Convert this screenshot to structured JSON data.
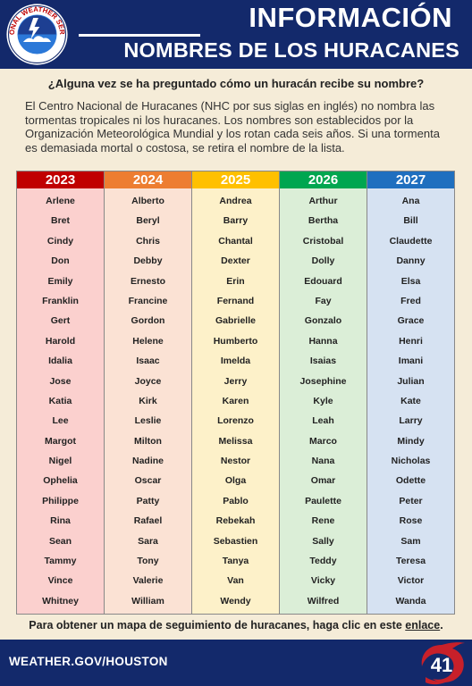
{
  "header": {
    "logo_text": "NATIONAL WEATHER SERVICE",
    "title": "INFORMACIÓN",
    "subtitle": "NOMBRES DE LOS HURACANES"
  },
  "question": "¿Alguna vez se ha preguntado cómo un huracán recibe su nombre?",
  "intro": "El Centro Nacional de Huracanes (NHC por sus siglas en inglés) no nombra las tormentas tropicales ni los huracanes. Los nombres son establecidos por la Organización Meteorológica Mundial y los rotan cada seis años. Si una tormenta es demasiada mortal o costosa, se retira el nombre de la lista.",
  "table": {
    "columns": [
      {
        "year": "2023",
        "head_color": "#c00000",
        "body_color": "#fbd0ce",
        "names": [
          "Arlene",
          "Bret",
          "Cindy",
          "Don",
          "Emily",
          "Franklin",
          "Gert",
          "Harold",
          "Idalia",
          "Jose",
          "Katia",
          "Lee",
          "Margot",
          "Nigel",
          "Ophelia",
          "Philippe",
          "Rina",
          "Sean",
          "Tammy",
          "Vince",
          "Whitney"
        ]
      },
      {
        "year": "2024",
        "head_color": "#ed7d31",
        "body_color": "#fbe2d4",
        "names": [
          "Alberto",
          "Beryl",
          "Chris",
          "Debby",
          "Ernesto",
          "Francine",
          "Gordon",
          "Helene",
          "Isaac",
          "Joyce",
          "Kirk",
          "Leslie",
          "Milton",
          "Nadine",
          "Oscar",
          "Patty",
          "Rafael",
          "Sara",
          "Tony",
          "Valerie",
          "William"
        ]
      },
      {
        "year": "2025",
        "head_color": "#ffc000",
        "body_color": "#fdf1c9",
        "names": [
          "Andrea",
          "Barry",
          "Chantal",
          "Dexter",
          "Erin",
          "Fernand",
          "Gabrielle",
          "Humberto",
          "Imelda",
          "Jerry",
          "Karen",
          "Lorenzo",
          "Melissa",
          "Nestor",
          "Olga",
          "Pablo",
          "Rebekah",
          "Sebastien",
          "Tanya",
          "Van",
          "Wendy"
        ]
      },
      {
        "year": "2026",
        "head_color": "#00a650",
        "body_color": "#dbeed7",
        "names": [
          "Arthur",
          "Bertha",
          "Cristobal",
          "Dolly",
          "Edouard",
          "Fay",
          "Gonzalo",
          "Hanna",
          "Isaias",
          "Josephine",
          "Kyle",
          "Leah",
          "Marco",
          "Nana",
          "Omar",
          "Paulette",
          "Rene",
          "Sally",
          "Teddy",
          "Vicky",
          "Wilfred"
        ]
      },
      {
        "year": "2027",
        "head_color": "#1f6fbf",
        "body_color": "#d6e2f2",
        "names": [
          "Ana",
          "Bill",
          "Claudette",
          "Danny",
          "Elsa",
          "Fred",
          "Grace",
          "Henri",
          "Imani",
          "Julian",
          "Kate",
          "Larry",
          "Mindy",
          "Nicholas",
          "Odette",
          "Peter",
          "Rose",
          "Sam",
          "Teresa",
          "Victor",
          "Wanda"
        ]
      }
    ]
  },
  "footer": {
    "note": "Para obtener un mapa de seguimiento de huracanes, haga clic en este ",
    "link": "enlace",
    "note_end": ".",
    "site": "WEATHER.GOV/HOUSTON",
    "page_number": "41"
  }
}
